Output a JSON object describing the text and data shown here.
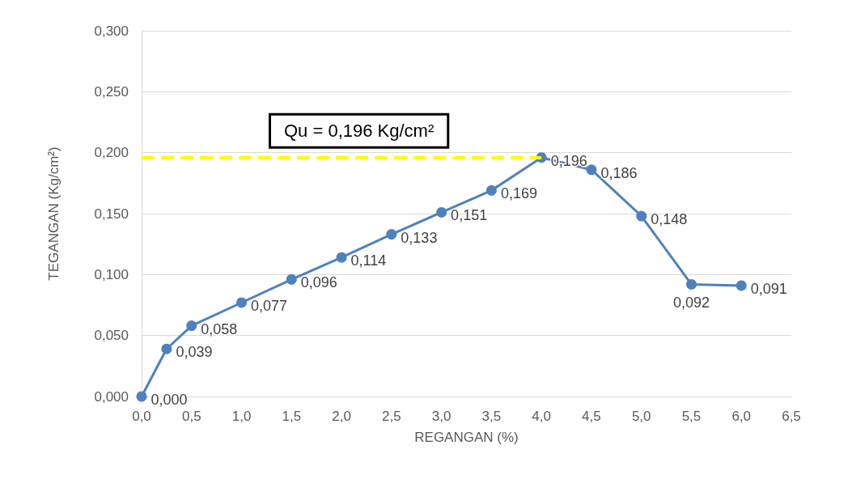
{
  "chart_data": {
    "type": "line",
    "xlabel": "REGANGAN (%)",
    "ylabel": "TEGANGAN (Kg/cm²)",
    "x": [
      0,
      0.25,
      0.5,
      1,
      1.5,
      2,
      2.5,
      3,
      3.5,
      4,
      4.5,
      5,
      5.5,
      6
    ],
    "series": [
      {
        "color": "#4f81bd",
        "values": [
          0,
          0.039,
          0.058,
          0.077,
          0.096,
          0.114,
          0.133,
          0.151,
          0.169,
          0.196,
          0.186,
          0.148,
          0.092,
          0.091
        ],
        "value_labels": [
          "0,000",
          "0,039",
          "0,058",
          "0,077",
          "0,096",
          "0,114",
          "0,133",
          "0,151",
          "0,169",
          "0,196",
          "0,186",
          "0,148",
          "0,092",
          "0,091"
        ]
      }
    ],
    "xlim": [
      0,
      6.5
    ],
    "xticks": [
      {
        "value": 0,
        "label": "0,0"
      },
      {
        "value": 0.5,
        "label": "0,5"
      },
      {
        "value": 1,
        "label": "1,0"
      },
      {
        "value": 1.5,
        "label": "1,5"
      },
      {
        "value": 2,
        "label": "2,0"
      },
      {
        "value": 2.5,
        "label": "2,5"
      },
      {
        "value": 3,
        "label": "3,0"
      },
      {
        "value": 3.5,
        "label": "3,5"
      },
      {
        "value": 4,
        "label": "4,0"
      },
      {
        "value": 4.5,
        "label": "4,5"
      },
      {
        "value": 5,
        "label": "5,0"
      },
      {
        "value": 5.5,
        "label": "5,5"
      },
      {
        "value": 6,
        "label": "6,0"
      },
      {
        "value": 6.5,
        "label": "6,5"
      }
    ],
    "ylim": [
      0,
      0.3
    ],
    "yticks": [
      {
        "value": 0,
        "label": "0,000"
      },
      {
        "value": 0.05,
        "label": "0,050"
      },
      {
        "value": 0.1,
        "label": "0,100"
      },
      {
        "value": 0.15,
        "label": "0,150"
      },
      {
        "value": 0.2,
        "label": "0,200"
      },
      {
        "value": 0.25,
        "label": "0,250"
      },
      {
        "value": 0.3,
        "label": "0,300"
      }
    ],
    "ref_lines": [
      {
        "axis": "y",
        "value": 0.196,
        "label": "Qu = 0,196 Kg/cm²",
        "color": "#ffff00",
        "line_style": "dashed"
      }
    ],
    "grid": "y",
    "marker": "circle",
    "line_style": "solid"
  }
}
